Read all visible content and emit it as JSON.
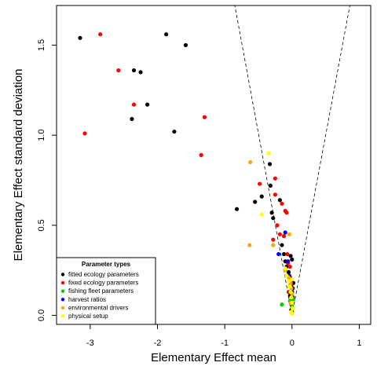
{
  "chart_data": {
    "type": "scatter",
    "title": "",
    "xlabel": "Elementary Effect mean",
    "ylabel": "Elementary Effect standard deviation",
    "xlim": [
      -3.5,
      1.17
    ],
    "ylim": [
      -0.05,
      1.72
    ],
    "x_ticks": [
      -3,
      -2,
      -1,
      0,
      1
    ],
    "x_tick_labels": [
      "-3",
      "-2",
      "-1",
      "0",
      "1"
    ],
    "y_ticks": [
      0.0,
      0.5,
      1.0,
      1.5
    ],
    "y_tick_labels": [
      "0.0",
      "0.5",
      "1.0",
      "1.5"
    ],
    "grid": false,
    "reference_lines": [
      {
        "style": "dashed",
        "from": [
          0,
          0
        ],
        "to": [
          -0.85,
          1.72
        ]
      },
      {
        "style": "dashed",
        "from": [
          0,
          0
        ],
        "to": [
          0.86,
          1.72
        ]
      }
    ],
    "legend": {
      "title": "Parameter types",
      "placement": "bottom-left",
      "entries": [
        {
          "label": "fitted ecology parameters",
          "color": "#000000"
        },
        {
          "label": "fixed ecology parameters",
          "color": "#ff0000"
        },
        {
          "label": "fishing fleet parameters",
          "color": "#00cc00"
        },
        {
          "label": "harvest ratios",
          "color": "#0000ff"
        },
        {
          "label": "environmental drivers",
          "color": "#ffa500"
        },
        {
          "label": "physical setup",
          "color": "#ffff00"
        }
      ]
    },
    "series": [
      {
        "name": "fitted ecology parameters",
        "color": "#000000",
        "points": [
          [
            -3.15,
            1.54
          ],
          [
            -1.87,
            1.56
          ],
          [
            -1.58,
            1.5
          ],
          [
            -2.35,
            1.36
          ],
          [
            -2.25,
            1.35
          ],
          [
            -2.15,
            1.17
          ],
          [
            -2.38,
            1.09
          ],
          [
            -1.75,
            1.02
          ],
          [
            -0.82,
            0.59
          ],
          [
            -0.55,
            0.63
          ],
          [
            -0.45,
            0.66
          ],
          [
            -0.33,
            0.84
          ],
          [
            -0.32,
            0.72
          ],
          [
            -0.3,
            0.57
          ],
          [
            -0.28,
            0.54
          ],
          [
            -0.18,
            0.64
          ],
          [
            -0.15,
            0.39
          ],
          [
            -0.12,
            0.34
          ],
          [
            -0.1,
            0.3
          ],
          [
            -0.08,
            0.27
          ],
          [
            -0.02,
            0.33
          ],
          [
            0.0,
            0.31
          ],
          [
            -0.05,
            0.24
          ],
          [
            -0.03,
            0.21
          ],
          [
            -0.02,
            0.19
          ],
          [
            -0.01,
            0.16
          ],
          [
            0.0,
            0.13
          ],
          [
            0.01,
            0.1
          ],
          [
            -0.02,
            0.08
          ],
          [
            0.0,
            0.05
          ],
          [
            -0.01,
            0.03
          ],
          [
            0.0,
            0.02
          ],
          [
            0.01,
            0.15
          ],
          [
            -0.03,
            0.11
          ],
          [
            0.02,
            0.18
          ]
        ]
      },
      {
        "name": "fixed ecology parameters",
        "color": "#ff0000",
        "points": [
          [
            -2.85,
            1.56
          ],
          [
            -2.58,
            1.36
          ],
          [
            -2.35,
            1.17
          ],
          [
            -3.08,
            1.01
          ],
          [
            -1.3,
            1.1
          ],
          [
            -1.35,
            0.89
          ],
          [
            -0.48,
            0.73
          ],
          [
            -0.25,
            0.76
          ],
          [
            -0.25,
            0.67
          ],
          [
            -0.15,
            0.62
          ],
          [
            -0.1,
            0.58
          ],
          [
            -0.08,
            0.57
          ],
          [
            -0.22,
            0.5
          ],
          [
            -0.18,
            0.45
          ],
          [
            -0.28,
            0.42
          ],
          [
            -0.12,
            0.44
          ],
          [
            -0.07,
            0.34
          ],
          [
            -0.06,
            0.29
          ],
          [
            -0.03,
            0.27
          ],
          [
            -0.04,
            0.22
          ],
          [
            -0.02,
            0.17
          ],
          [
            -0.05,
            0.13
          ],
          [
            0.0,
            0.09
          ],
          [
            -0.01,
            0.06
          ]
        ]
      },
      {
        "name": "fishing fleet parameters",
        "color": "#00cc00",
        "points": [
          [
            -0.15,
            0.06
          ],
          [
            -0.03,
            0.08
          ],
          [
            0.02,
            0.09
          ],
          [
            0.0,
            0.05
          ]
        ]
      },
      {
        "name": "harvest ratios",
        "color": "#0000ff",
        "points": [
          [
            -0.2,
            0.34
          ],
          [
            -0.1,
            0.46
          ],
          [
            -0.06,
            0.3
          ],
          [
            -0.04,
            0.22
          ],
          [
            0.0,
            0.13
          ]
        ]
      },
      {
        "name": "environmental drivers",
        "color": "#ffa500",
        "points": [
          [
            -0.62,
            0.85
          ],
          [
            -0.63,
            0.39
          ],
          [
            -0.28,
            0.39
          ],
          [
            -0.04,
            0.45
          ],
          [
            -0.1,
            0.25
          ],
          [
            -0.05,
            0.21
          ],
          [
            -0.02,
            0.18
          ],
          [
            -0.01,
            0.15
          ],
          [
            0.0,
            0.12
          ],
          [
            -0.02,
            0.07
          ],
          [
            0.01,
            0.04
          ]
        ]
      },
      {
        "name": "physical setup",
        "color": "#ffff00",
        "points": [
          [
            -0.35,
            0.9
          ],
          [
            -0.45,
            0.56
          ],
          [
            -0.1,
            0.26
          ],
          [
            -0.08,
            0.22
          ],
          [
            -0.05,
            0.19
          ],
          [
            -0.03,
            0.16
          ],
          [
            -0.02,
            0.13
          ],
          [
            -0.01,
            0.1
          ],
          [
            0.0,
            0.07
          ],
          [
            0.01,
            0.04
          ],
          [
            -0.01,
            0.02
          ],
          [
            0.0,
            0.01
          ],
          [
            -0.04,
            0.16
          ],
          [
            0.0,
            0.2
          ]
        ]
      }
    ]
  }
}
